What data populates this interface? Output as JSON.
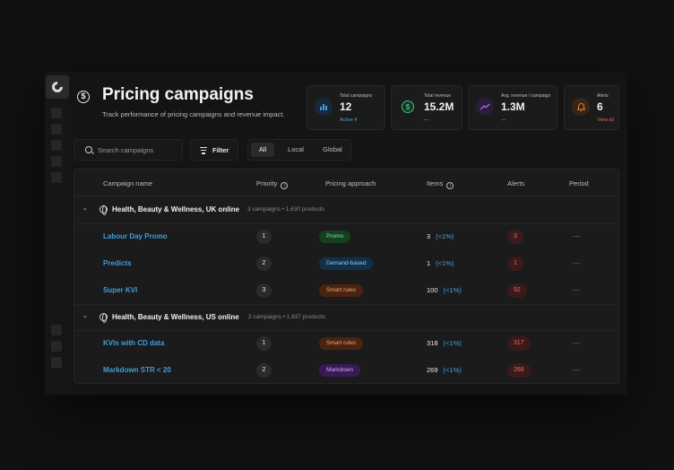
{
  "page": {
    "title": "Pricing campaigns",
    "subtitle": "Track performance of pricing campaigns and revenue impact."
  },
  "stats": [
    {
      "label": "Total campaigns",
      "value": "12",
      "sub": "Active  4",
      "icon": "bar-chart-icon",
      "color": "#3d9ee0"
    },
    {
      "label": "Total revenue",
      "value": "15.2M",
      "sub": "—",
      "icon": "dollar-icon",
      "color": "#3cc07a"
    },
    {
      "label": "Avg. revenue / campaign",
      "value": "1.3M",
      "sub": "—",
      "icon": "trend-up-icon",
      "color": "#a170e0"
    },
    {
      "label": "Alerts",
      "value": "6",
      "sub": "View all",
      "icon": "bell-icon",
      "color": "#e0863d"
    }
  ],
  "toolbar": {
    "search_placeholder": "Search campaigns",
    "filter_label": "Filter",
    "segments": [
      "All",
      "Local",
      "Global"
    ],
    "active_segment": "All"
  },
  "table": {
    "columns": {
      "name": "Campaign name",
      "priority": "Priority",
      "approach": "Pricing approach",
      "items": "Items",
      "alerts": "Alerts",
      "period": "Period"
    },
    "groups": [
      {
        "name": "Health, Beauty & Wellness, UK online",
        "meta": "3 campaigns  •  1,630 products",
        "rows": [
          {
            "name": "Labour Day Promo",
            "priority": "1",
            "approach": "Promo",
            "items": "3",
            "pct": "(<1%)",
            "alerts": "3",
            "period": "—"
          },
          {
            "name": "Predicts",
            "priority": "2",
            "approach": "Demand-based",
            "items": "1",
            "pct": "(<1%)",
            "alerts": "1",
            "period": "—"
          },
          {
            "name": "Super KVI",
            "priority": "3",
            "approach": "Smart rules",
            "items": "100",
            "pct": "(<1%)",
            "alerts": "92",
            "period": "—"
          }
        ]
      },
      {
        "name": "Health, Beauty & Wellness, US online",
        "meta": "2 campaigns  •  1,837 products",
        "rows": [
          {
            "name": "KVIs with CD data",
            "priority": "1",
            "approach": "Smart rules",
            "items": "318",
            "pct": "(<1%)",
            "alerts": "317",
            "period": "—"
          },
          {
            "name": "Markdown STR < 20",
            "priority": "2",
            "approach": "Markdown",
            "items": "269",
            "pct": "(<1%)",
            "alerts": "268",
            "period": "—"
          }
        ]
      }
    ],
    "approach_colors": {
      "Promo": {
        "bg": "#14401f",
        "fg": "#7be39a"
      },
      "Demand-based": {
        "bg": "#12304a",
        "fg": "#8cc6f0"
      },
      "Smart rules": {
        "bg": "#4a2410",
        "fg": "#f0a774"
      },
      "Markdown": {
        "bg": "#3a1a55",
        "fg": "#d1a6f5"
      }
    }
  }
}
